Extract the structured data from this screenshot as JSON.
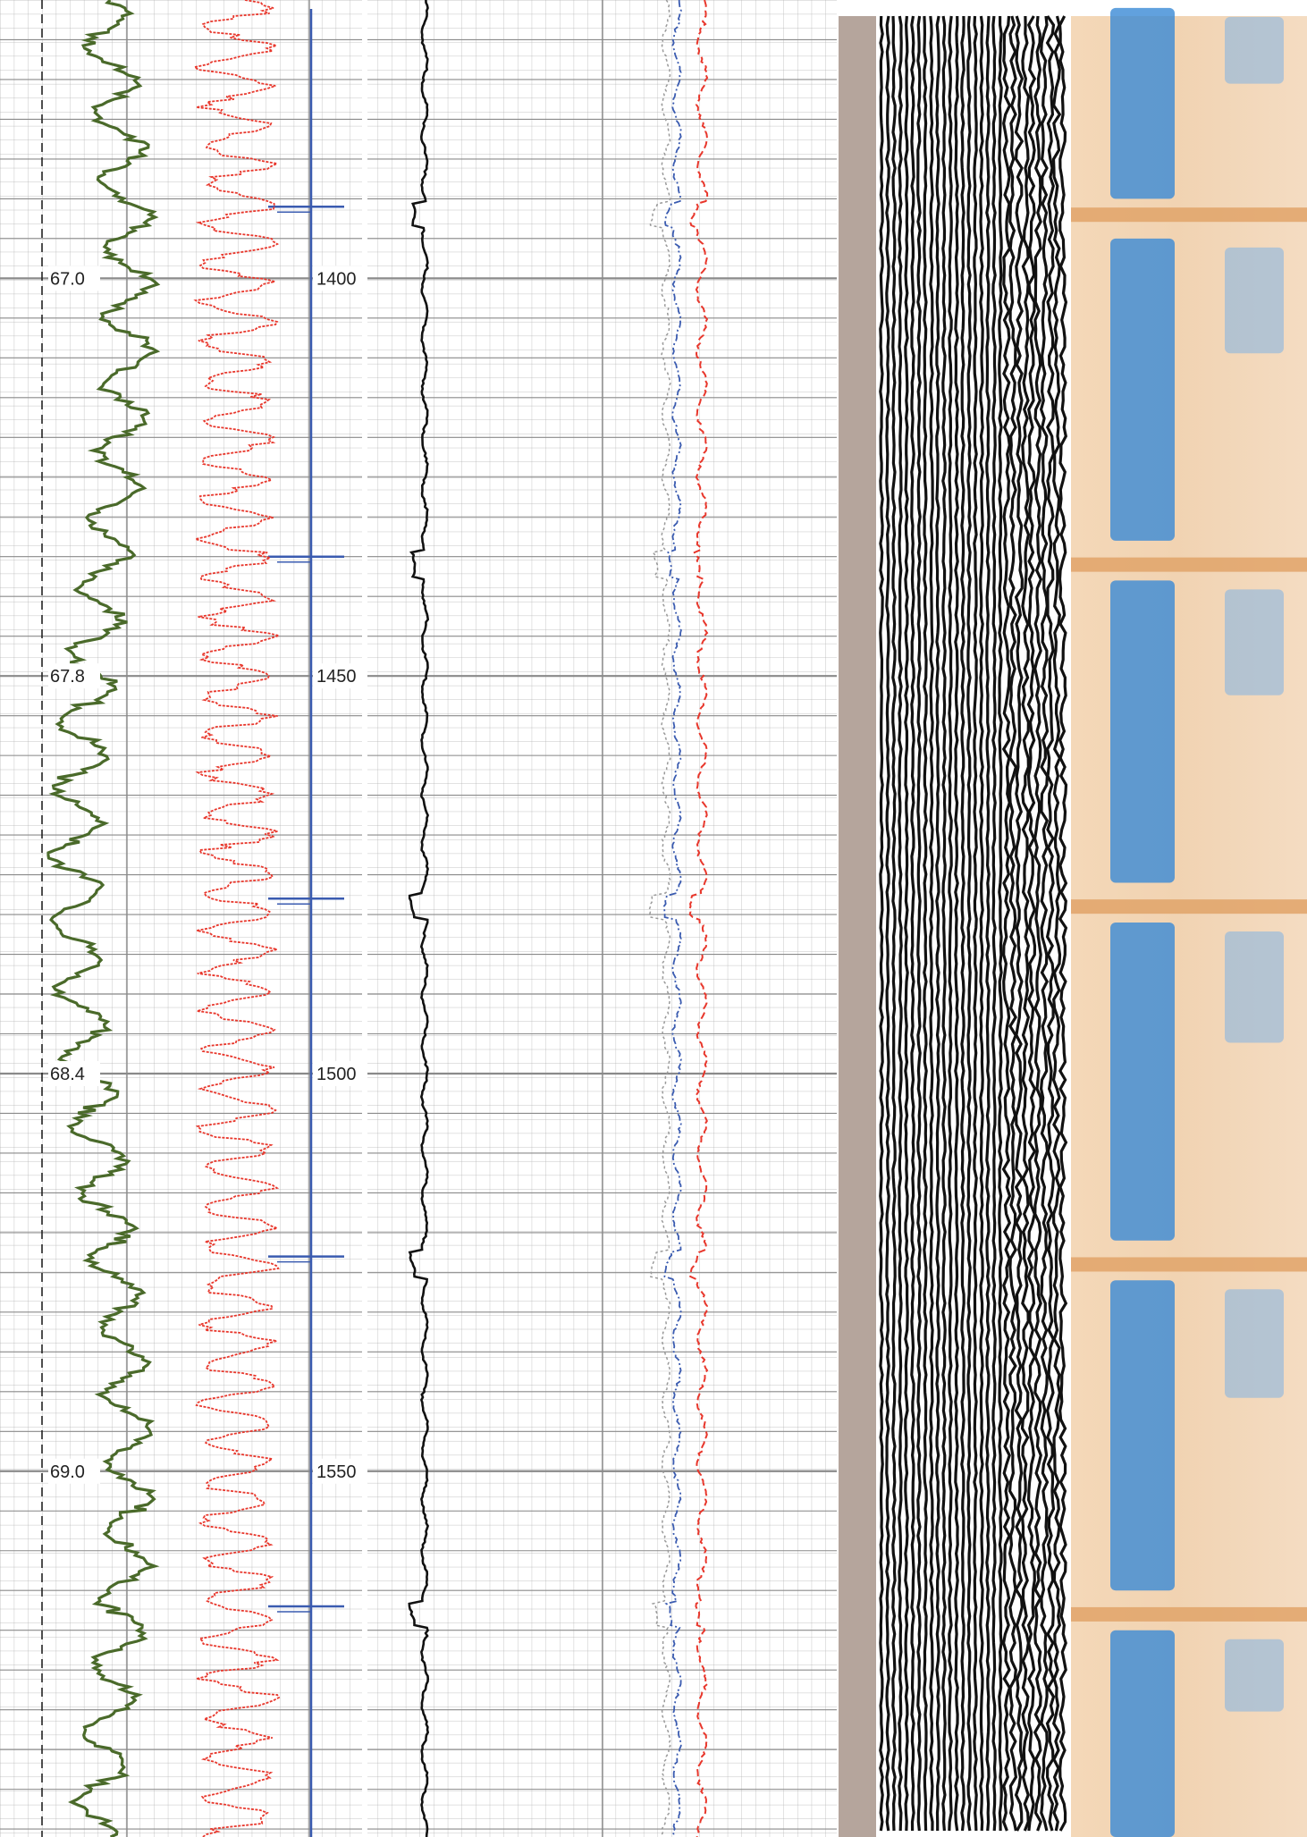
{
  "chart_data": {
    "type": "line",
    "title": "",
    "colors": {
      "grid": "#9a9a9a",
      "track2_curve": "#4a6a2a",
      "track2_dashed_reference": "#222222",
      "track2_red_curve": "#e8372c",
      "track2_blue_scale_line": "#3a5bb0",
      "track3_curve": "#111111",
      "track4_curves": [
        "#e8372c",
        "#3a5bb0",
        "#9a9a9a"
      ],
      "brown_strip": "#b5a59c",
      "seismic_trace": "#111111",
      "image_blue": "#3a8ad6",
      "image_tan": "#f4d8b8",
      "image_dark_tan": "#e0a368"
    },
    "depth_axis": {
      "label": "",
      "range": [
        1365,
        1596
      ],
      "ticks": [
        {
          "value": 1400,
          "label": "1400"
        },
        {
          "value": 1450,
          "label": "1450"
        },
        {
          "value": 1500,
          "label": "1500"
        },
        {
          "value": 1550,
          "label": "1550"
        }
      ]
    },
    "track2_scale": {
      "ticks": [
        {
          "depth": 1400,
          "label": "67.0"
        },
        {
          "depth": 1450,
          "label": "67.8"
        },
        {
          "depth": 1500,
          "label": "68.4"
        },
        {
          "depth": 1550,
          "label": "69.0"
        }
      ]
    },
    "blue_markers_depths": [
      1391,
      1435,
      1478,
      1523,
      1567
    ],
    "layer_boundaries_depths": [
      1392,
      1436,
      1479,
      1524,
      1568
    ],
    "image_blue_bands": [
      {
        "from": 1366,
        "to": 1390
      },
      {
        "from": 1395,
        "to": 1433
      },
      {
        "from": 1438,
        "to": 1476
      },
      {
        "from": 1481,
        "to": 1521
      },
      {
        "from": 1526,
        "to": 1565
      },
      {
        "from": 1570,
        "to": 1596
      }
    ]
  }
}
